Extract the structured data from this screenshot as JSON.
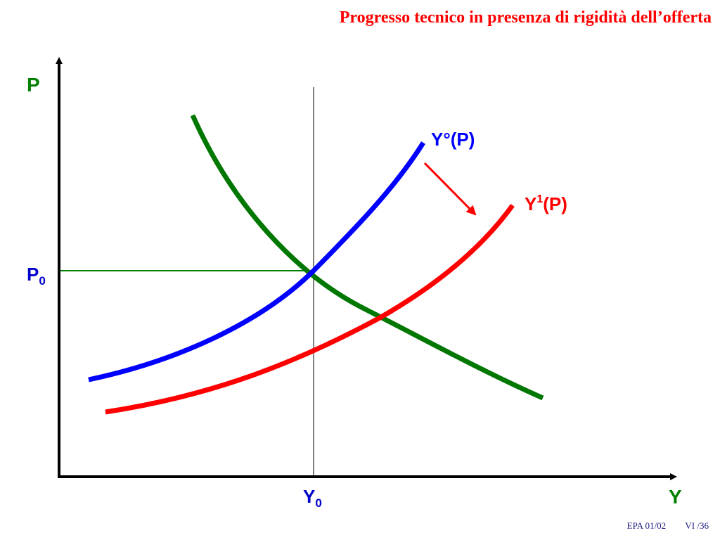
{
  "title": "Progresso tecnico in presenza di rigidità dell’offerta",
  "axes": {
    "y_axis_label": "P",
    "x_axis_label": "Y"
  },
  "reference": {
    "p0_main": "P",
    "p0_sub": "0",
    "y0_main": "Y",
    "y0_sub": "0"
  },
  "curves": {
    "supply_initial": {
      "main": "Y°(P)",
      "color": "#0000ff"
    },
    "supply_shifted": {
      "pre": "Y",
      "sup": "1",
      "post": "(P)",
      "color": "#ff0000"
    },
    "demand": {
      "color": "#007700"
    }
  },
  "colors": {
    "axis": "#000000",
    "axis_label": "#008000",
    "ref_label": "#0000cc",
    "p0_line": "#008000",
    "y0_line": "#808080",
    "shift_arrow": "#ff0000"
  },
  "footer": {
    "code": "EPA 01/02",
    "page": "VI /36"
  }
}
